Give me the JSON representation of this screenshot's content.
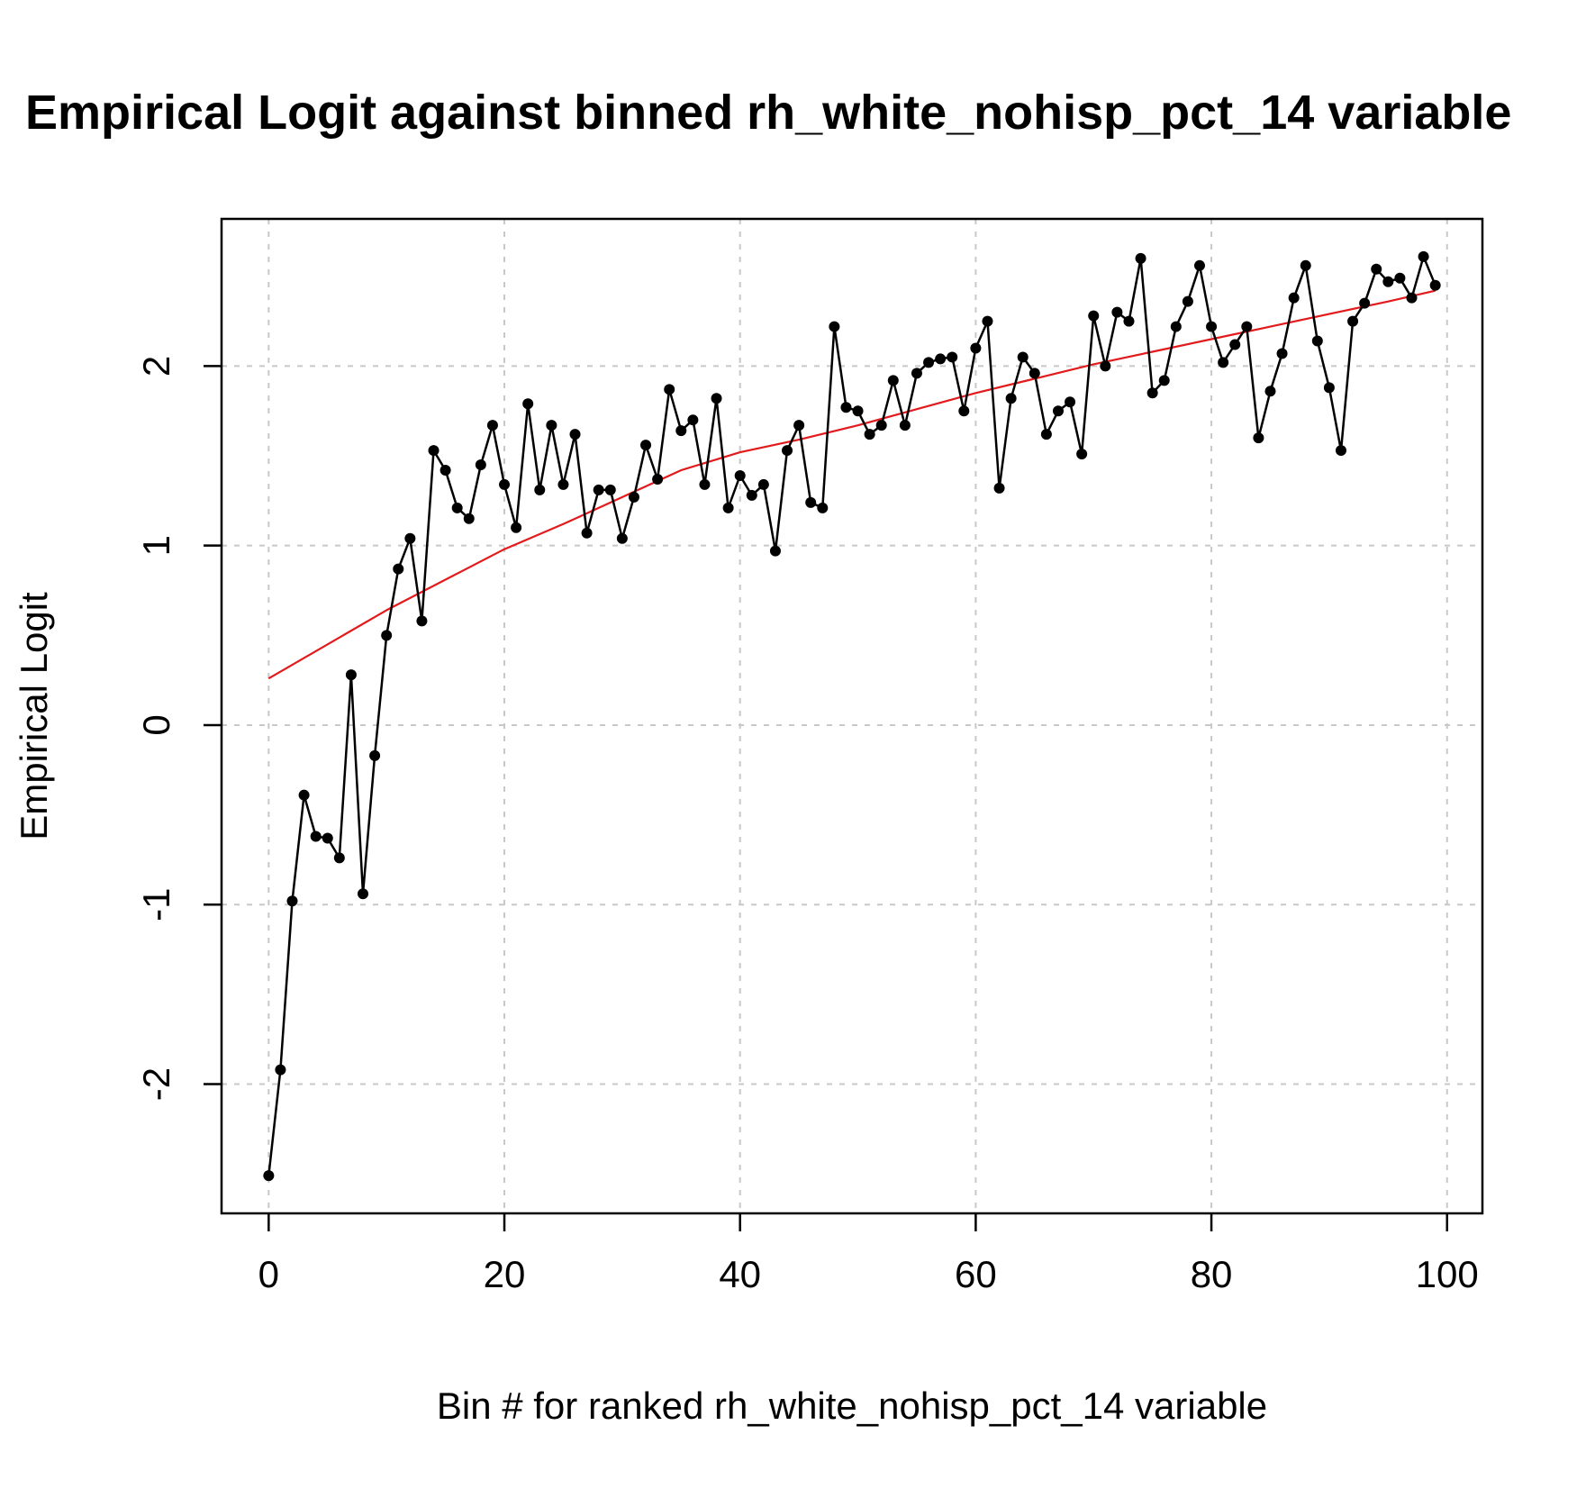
{
  "chart_data": {
    "type": "line",
    "title": "Empirical Logit against binned rh_white_nohisp_pct_14 variable",
    "xlabel": "Bin # for ranked rh_white_nohisp_pct_14 variable",
    "ylabel": "Empirical Logit",
    "xlim": [
      -4,
      103
    ],
    "ylim": [
      -2.72,
      2.82
    ],
    "x_ticks": [
      0,
      20,
      40,
      60,
      80,
      100
    ],
    "x_tick_labels": [
      "0",
      "20",
      "40",
      "60",
      "80",
      "100"
    ],
    "y_ticks": [
      -2,
      -1,
      0,
      1,
      2
    ],
    "y_tick_labels": [
      "-2",
      "-1",
      "0",
      "1",
      "2"
    ],
    "grid": true,
    "series": [
      {
        "color": "#000000",
        "markers": true,
        "x": [
          0,
          1,
          2,
          3,
          4,
          5,
          6,
          7,
          8,
          9,
          10,
          11,
          12,
          13,
          14,
          15,
          16,
          17,
          18,
          19,
          20,
          21,
          22,
          23,
          24,
          25,
          26,
          27,
          28,
          29,
          30,
          31,
          32,
          33,
          34,
          35,
          36,
          37,
          38,
          39,
          40,
          41,
          42,
          43,
          44,
          45,
          46,
          47,
          48,
          49,
          50,
          51,
          52,
          53,
          54,
          55,
          56,
          57,
          58,
          59,
          60,
          61,
          62,
          63,
          64,
          65,
          66,
          67,
          68,
          69,
          70,
          71,
          72,
          73,
          74,
          75,
          76,
          77,
          78,
          79,
          80,
          81,
          82,
          83,
          84,
          85,
          86,
          87,
          88,
          89,
          90,
          91,
          92,
          93,
          94,
          95,
          96,
          97,
          98,
          99
        ],
        "values": [
          -2.51,
          -1.92,
          -0.98,
          -0.39,
          -0.62,
          -0.63,
          -0.74,
          0.28,
          -0.94,
          -0.17,
          0.5,
          0.87,
          1.04,
          0.58,
          1.53,
          1.42,
          1.21,
          1.15,
          1.45,
          1.67,
          1.34,
          1.1,
          1.79,
          1.31,
          1.67,
          1.34,
          1.62,
          1.07,
          1.31,
          1.31,
          1.04,
          1.27,
          1.56,
          1.37,
          1.87,
          1.64,
          1.7,
          1.34,
          1.82,
          1.21,
          1.39,
          1.28,
          1.34,
          0.97,
          1.53,
          1.67,
          1.24,
          1.21,
          2.22,
          1.77,
          1.75,
          1.62,
          1.67,
          1.92,
          1.67,
          1.96,
          2.02,
          2.04,
          2.05,
          1.75,
          2.1,
          2.25,
          1.32,
          1.82,
          2.05,
          1.96,
          1.62,
          1.75,
          1.8,
          1.51,
          2.28,
          2.0,
          2.3,
          2.25,
          2.6,
          1.85,
          1.92,
          2.22,
          2.36,
          2.56,
          2.22,
          2.02,
          2.12,
          2.22,
          1.6,
          1.86,
          2.07,
          2.38,
          2.56,
          2.14,
          1.88,
          1.53,
          2.25,
          2.35,
          2.54,
          2.47,
          2.49,
          2.38,
          2.61,
          2.45
        ]
      },
      {
        "color": "#e31a1c",
        "markers": false,
        "x": [
          0,
          5,
          10,
          15,
          20,
          25,
          30,
          35,
          40,
          45,
          50,
          55,
          60,
          65,
          70,
          75,
          80,
          85,
          90,
          95,
          99
        ],
        "values": [
          0.26,
          0.45,
          0.64,
          0.81,
          0.98,
          1.12,
          1.27,
          1.42,
          1.52,
          1.59,
          1.67,
          1.76,
          1.85,
          1.93,
          2.01,
          2.08,
          2.15,
          2.22,
          2.29,
          2.36,
          2.42
        ]
      }
    ]
  }
}
